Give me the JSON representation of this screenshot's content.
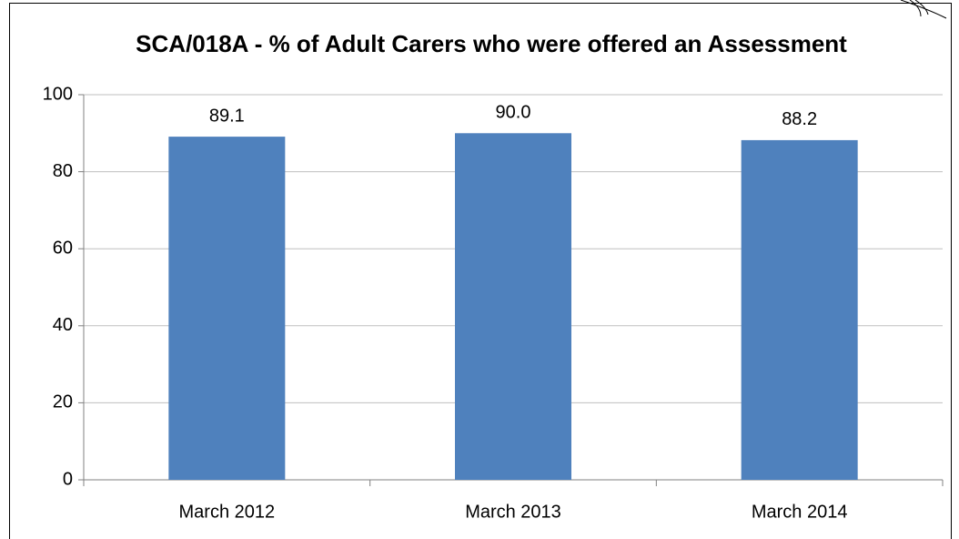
{
  "chart_data": {
    "type": "bar",
    "title": "SCA/018A - % of Adult Carers who were offered an Assessment",
    "categories": [
      "March 2012",
      "March 2013",
      "March 2014"
    ],
    "values": [
      89.1,
      90,
      88.2
    ],
    "value_labels": [
      "89.1",
      "90.0",
      "88.2"
    ],
    "color": "#4f81bd",
    "ylim": [
      0,
      100
    ],
    "yticks": [
      0,
      20,
      40,
      60,
      80,
      100
    ],
    "grid": true
  }
}
